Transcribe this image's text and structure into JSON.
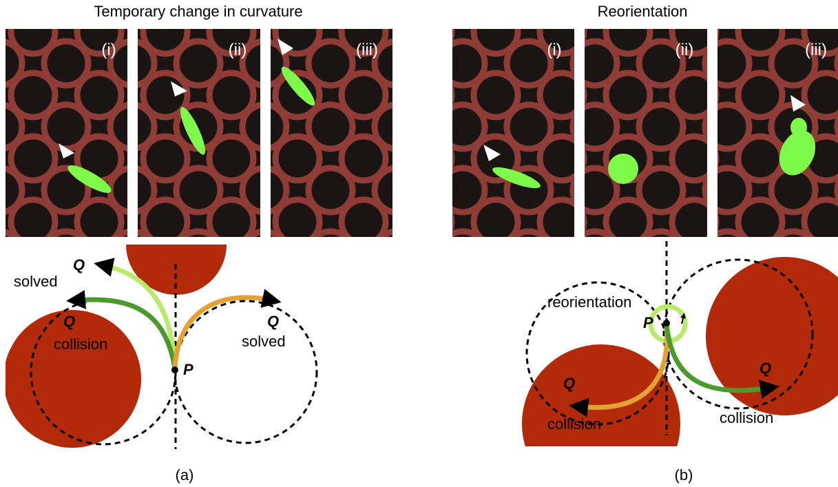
{
  "panels": [
    {
      "title": "Temporary change in curvature",
      "frames": [
        "(i)",
        "(ii)",
        "(iii)"
      ],
      "labels": [
        "Q",
        "solved",
        "Q",
        "collision",
        "Q",
        "solved",
        "P"
      ],
      "caption": "(a)"
    },
    {
      "title": "Reorientation",
      "frames": [
        "(i)",
        "(ii)",
        "(iii)"
      ],
      "labels": [
        "reorientation",
        "P",
        "Q",
        "collision",
        "Q",
        "collision"
      ],
      "caption": "(b)"
    }
  ]
}
